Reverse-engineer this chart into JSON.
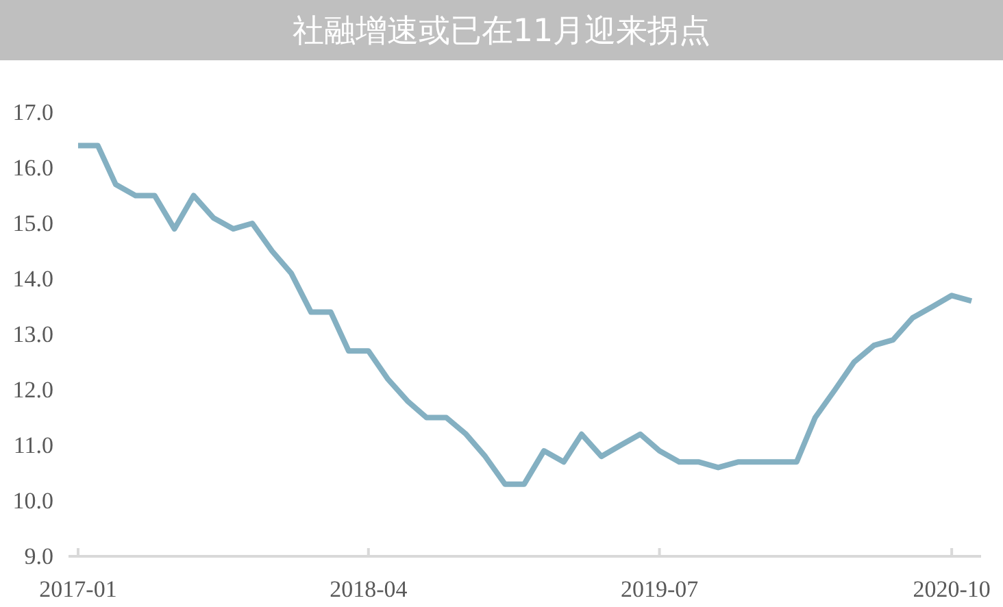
{
  "chart_data": {
    "type": "line",
    "title": "社融增速或已在11月迎来拐点",
    "x": [
      "2017-01",
      "2017-02",
      "2017-03",
      "2017-04",
      "2017-05",
      "2017-06",
      "2017-07",
      "2017-08",
      "2017-09",
      "2017-10",
      "2017-11",
      "2017-12",
      "2018-01",
      "2018-02",
      "2018-03",
      "2018-04",
      "2018-05",
      "2018-06",
      "2018-07",
      "2018-08",
      "2018-09",
      "2018-10",
      "2018-11",
      "2018-12",
      "2019-01",
      "2019-02",
      "2019-03",
      "2019-04",
      "2019-05",
      "2019-06",
      "2019-07",
      "2019-08",
      "2019-09",
      "2019-10",
      "2019-11",
      "2019-12",
      "2020-01",
      "2020-02",
      "2020-03",
      "2020-04",
      "2020-05",
      "2020-06",
      "2020-07",
      "2020-08",
      "2020-09",
      "2020-10",
      "2020-11"
    ],
    "series": [
      {
        "color": "#84b0c2",
        "values": [
          16.4,
          16.4,
          15.7,
          15.5,
          15.5,
          14.9,
          15.5,
          15.1,
          14.9,
          15.0,
          14.5,
          14.1,
          13.4,
          13.4,
          12.7,
          12.7,
          12.2,
          11.8,
          11.5,
          11.5,
          11.2,
          10.8,
          10.3,
          10.3,
          10.9,
          10.7,
          11.2,
          10.8,
          11.0,
          11.2,
          10.9,
          10.7,
          10.7,
          10.6,
          10.7,
          10.7,
          10.7,
          10.7,
          11.5,
          12.0,
          12.5,
          12.8,
          12.9,
          13.3,
          13.5,
          13.7,
          13.6
        ]
      }
    ],
    "xlim": [
      "2016-12-17",
      "2020-11-16"
    ],
    "xticks": [
      {
        "value": "2017-01",
        "label": "2017-01"
      },
      {
        "value": "2018-04",
        "label": "2018-04"
      },
      {
        "value": "2019-07",
        "label": "2019-07"
      },
      {
        "value": "2020-10",
        "label": "2020-10"
      }
    ],
    "ylim": [
      9,
      17
    ],
    "yticks": [
      {
        "value": 9,
        "label": "9.0"
      },
      {
        "value": 10,
        "label": "10.0"
      },
      {
        "value": 11,
        "label": "11.0"
      },
      {
        "value": 12,
        "label": "12.0"
      },
      {
        "value": 13,
        "label": "13.0"
      },
      {
        "value": 14,
        "label": "14.0"
      },
      {
        "value": 15,
        "label": "15.0"
      },
      {
        "value": 16,
        "label": "16.0"
      },
      {
        "value": 17,
        "label": "17.0"
      }
    ],
    "grid": false,
    "marker": "none",
    "line_style": "solid"
  }
}
